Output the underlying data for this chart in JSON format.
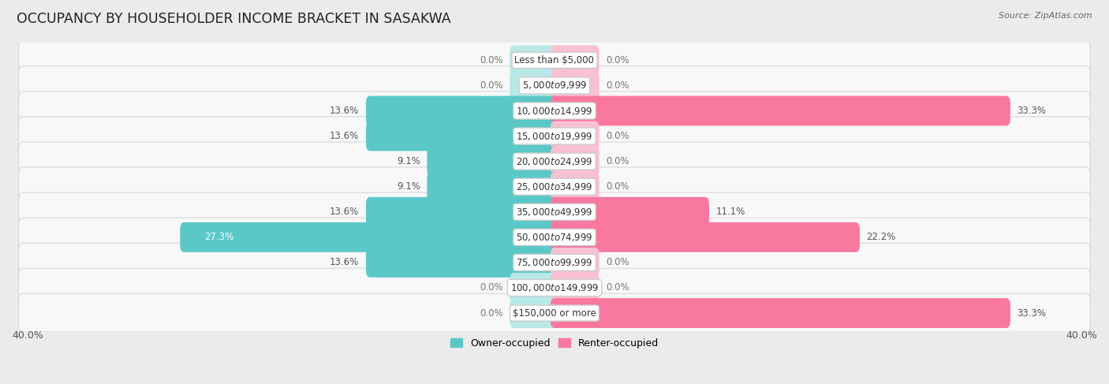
{
  "title": "OCCUPANCY BY HOUSEHOLDER INCOME BRACKET IN SASAKWA",
  "source": "Source: ZipAtlas.com",
  "categories": [
    "Less than $5,000",
    "$5,000 to $9,999",
    "$10,000 to $14,999",
    "$15,000 to $19,999",
    "$20,000 to $24,999",
    "$25,000 to $34,999",
    "$35,000 to $49,999",
    "$50,000 to $74,999",
    "$75,000 to $99,999",
    "$100,000 to $149,999",
    "$150,000 or more"
  ],
  "owner_values": [
    0.0,
    0.0,
    13.6,
    13.6,
    9.1,
    9.1,
    13.6,
    27.3,
    13.6,
    0.0,
    0.0
  ],
  "renter_values": [
    0.0,
    0.0,
    33.3,
    0.0,
    0.0,
    0.0,
    11.1,
    22.2,
    0.0,
    0.0,
    33.3
  ],
  "owner_color": "#5bc8c8",
  "renter_color": "#f878a0",
  "owner_color_light": "#b8e8e8",
  "renter_color_light": "#f8c0d0",
  "background_color": "#ebebeb",
  "row_bg_color": "#f8f8f8",
  "row_border_color": "#d8d8d8",
  "axis_max": 40.0,
  "min_bar": 3.0,
  "bar_height": 0.58,
  "title_fontsize": 12.5,
  "label_fontsize": 8.5,
  "category_fontsize": 8.5,
  "legend_fontsize": 9,
  "source_fontsize": 8
}
